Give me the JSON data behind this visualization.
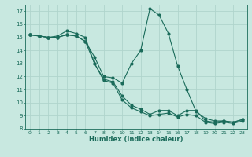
{
  "title": "",
  "xlabel": "Humidex (Indice chaleur)",
  "xlim": [
    -0.5,
    23.5
  ],
  "ylim": [
    8,
    17.5
  ],
  "yticks": [
    8,
    9,
    10,
    11,
    12,
    13,
    14,
    15,
    16,
    17
  ],
  "xticks": [
    0,
    1,
    2,
    3,
    4,
    5,
    6,
    7,
    8,
    9,
    10,
    11,
    12,
    13,
    14,
    15,
    16,
    17,
    18,
    19,
    20,
    21,
    22,
    23
  ],
  "bg_color": "#c8e8e0",
  "grid_color": "#b0d4cc",
  "line_color": "#1a6b5a",
  "line1_x": [
    0,
    1,
    2,
    3,
    4,
    5,
    6,
    7,
    8,
    9,
    10,
    11,
    12,
    13,
    14,
    15,
    16,
    17,
    18,
    19,
    20,
    21,
    22,
    23
  ],
  "line1_y": [
    15.2,
    15.1,
    15.0,
    15.1,
    15.5,
    15.3,
    15.0,
    13.0,
    11.8,
    11.6,
    10.5,
    9.8,
    9.5,
    9.1,
    9.4,
    9.4,
    9.0,
    9.4,
    9.4,
    8.6,
    8.5,
    8.6,
    8.5,
    8.7
  ],
  "line2_x": [
    0,
    1,
    2,
    3,
    4,
    5,
    6,
    7,
    8,
    9,
    10,
    11,
    12,
    13,
    14,
    15,
    16,
    17,
    18,
    19,
    20,
    21,
    22,
    23
  ],
  "line2_y": [
    15.2,
    15.1,
    15.0,
    15.0,
    15.2,
    15.1,
    14.7,
    13.0,
    11.7,
    11.5,
    10.2,
    9.6,
    9.3,
    9.0,
    9.1,
    9.2,
    8.9,
    9.1,
    9.0,
    8.5,
    8.4,
    8.5,
    8.4,
    8.6
  ],
  "line3_x": [
    0,
    1,
    2,
    3,
    4,
    5,
    6,
    7,
    8,
    9,
    10,
    11,
    12,
    13,
    14,
    15,
    16,
    17,
    18,
    19,
    20,
    21,
    22,
    23
  ],
  "line3_y": [
    15.2,
    15.1,
    15.0,
    15.0,
    15.2,
    15.1,
    14.7,
    13.5,
    12.0,
    11.9,
    11.5,
    13.0,
    14.0,
    17.2,
    16.7,
    15.3,
    12.8,
    11.0,
    9.3,
    8.8,
    8.6,
    8.6,
    8.5,
    8.7
  ]
}
